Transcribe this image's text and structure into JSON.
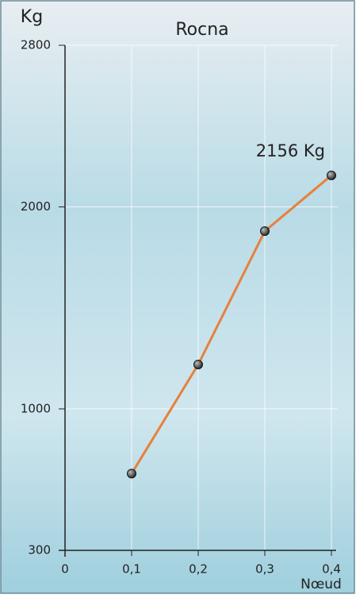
{
  "chart_data": {
    "type": "line",
    "title": "Rocna",
    "y_label": "Kg",
    "x_label": "Nœud",
    "x": [
      0.1,
      0.2,
      0.3,
      0.4
    ],
    "series": [
      {
        "color": "#e8803c",
        "values": [
          680,
          1220,
          1880,
          2156
        ],
        "value_labels": [
          null,
          null,
          null,
          "2156 Kg"
        ]
      }
    ],
    "xlim": [
      0,
      0.4
    ],
    "xticks": [
      0,
      {
        "value": 0.1,
        "label": "0,1"
      },
      {
        "value": 0.2,
        "label": "0,2"
      },
      {
        "value": 0.3,
        "label": "0,3"
      },
      {
        "value": 0.4,
        "label": "0,4"
      }
    ],
    "ylim": [
      300,
      2800
    ],
    "yticks": [
      300,
      1000,
      2000,
      2800
    ],
    "grid": true
  }
}
